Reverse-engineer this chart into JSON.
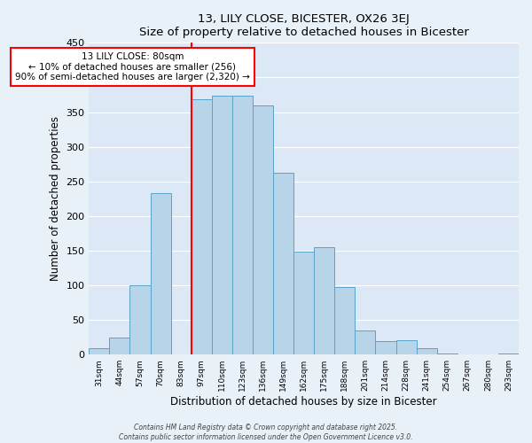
{
  "title1": "13, LILY CLOSE, BICESTER, OX26 3EJ",
  "title2": "Size of property relative to detached houses in Bicester",
  "xlabel": "Distribution of detached houses by size in Bicester",
  "ylabel": "Number of detached properties",
  "bar_labels": [
    "31sqm",
    "44sqm",
    "57sqm",
    "70sqm",
    "83sqm",
    "97sqm",
    "110sqm",
    "123sqm",
    "136sqm",
    "149sqm",
    "162sqm",
    "175sqm",
    "188sqm",
    "201sqm",
    "214sqm",
    "228sqm",
    "241sqm",
    "254sqm",
    "267sqm",
    "280sqm",
    "293sqm"
  ],
  "bar_values": [
    9,
    25,
    100,
    233,
    0,
    369,
    374,
    374,
    360,
    262,
    148,
    155,
    97,
    35,
    20,
    21,
    9,
    2,
    0,
    0,
    2
  ],
  "bar_color": "#b8d4e8",
  "bar_edge_color": "#5ba3c9",
  "ylim": [
    0,
    450
  ],
  "yticks": [
    0,
    50,
    100,
    150,
    200,
    250,
    300,
    350,
    400,
    450
  ],
  "annotation_title": "13 LILY CLOSE: 80sqm",
  "annotation_line1": "← 10% of detached houses are smaller (256)",
  "annotation_line2": "90% of semi-detached houses are larger (2,320) →",
  "vline_bar_index": 4,
  "footer1": "Contains HM Land Registry data © Crown copyright and database right 2025.",
  "footer2": "Contains public sector information licensed under the Open Government Licence v3.0.",
  "bg_color": "#e8f0f8",
  "plot_bg_color": "#dce8f5",
  "grid_color": "#ffffff"
}
